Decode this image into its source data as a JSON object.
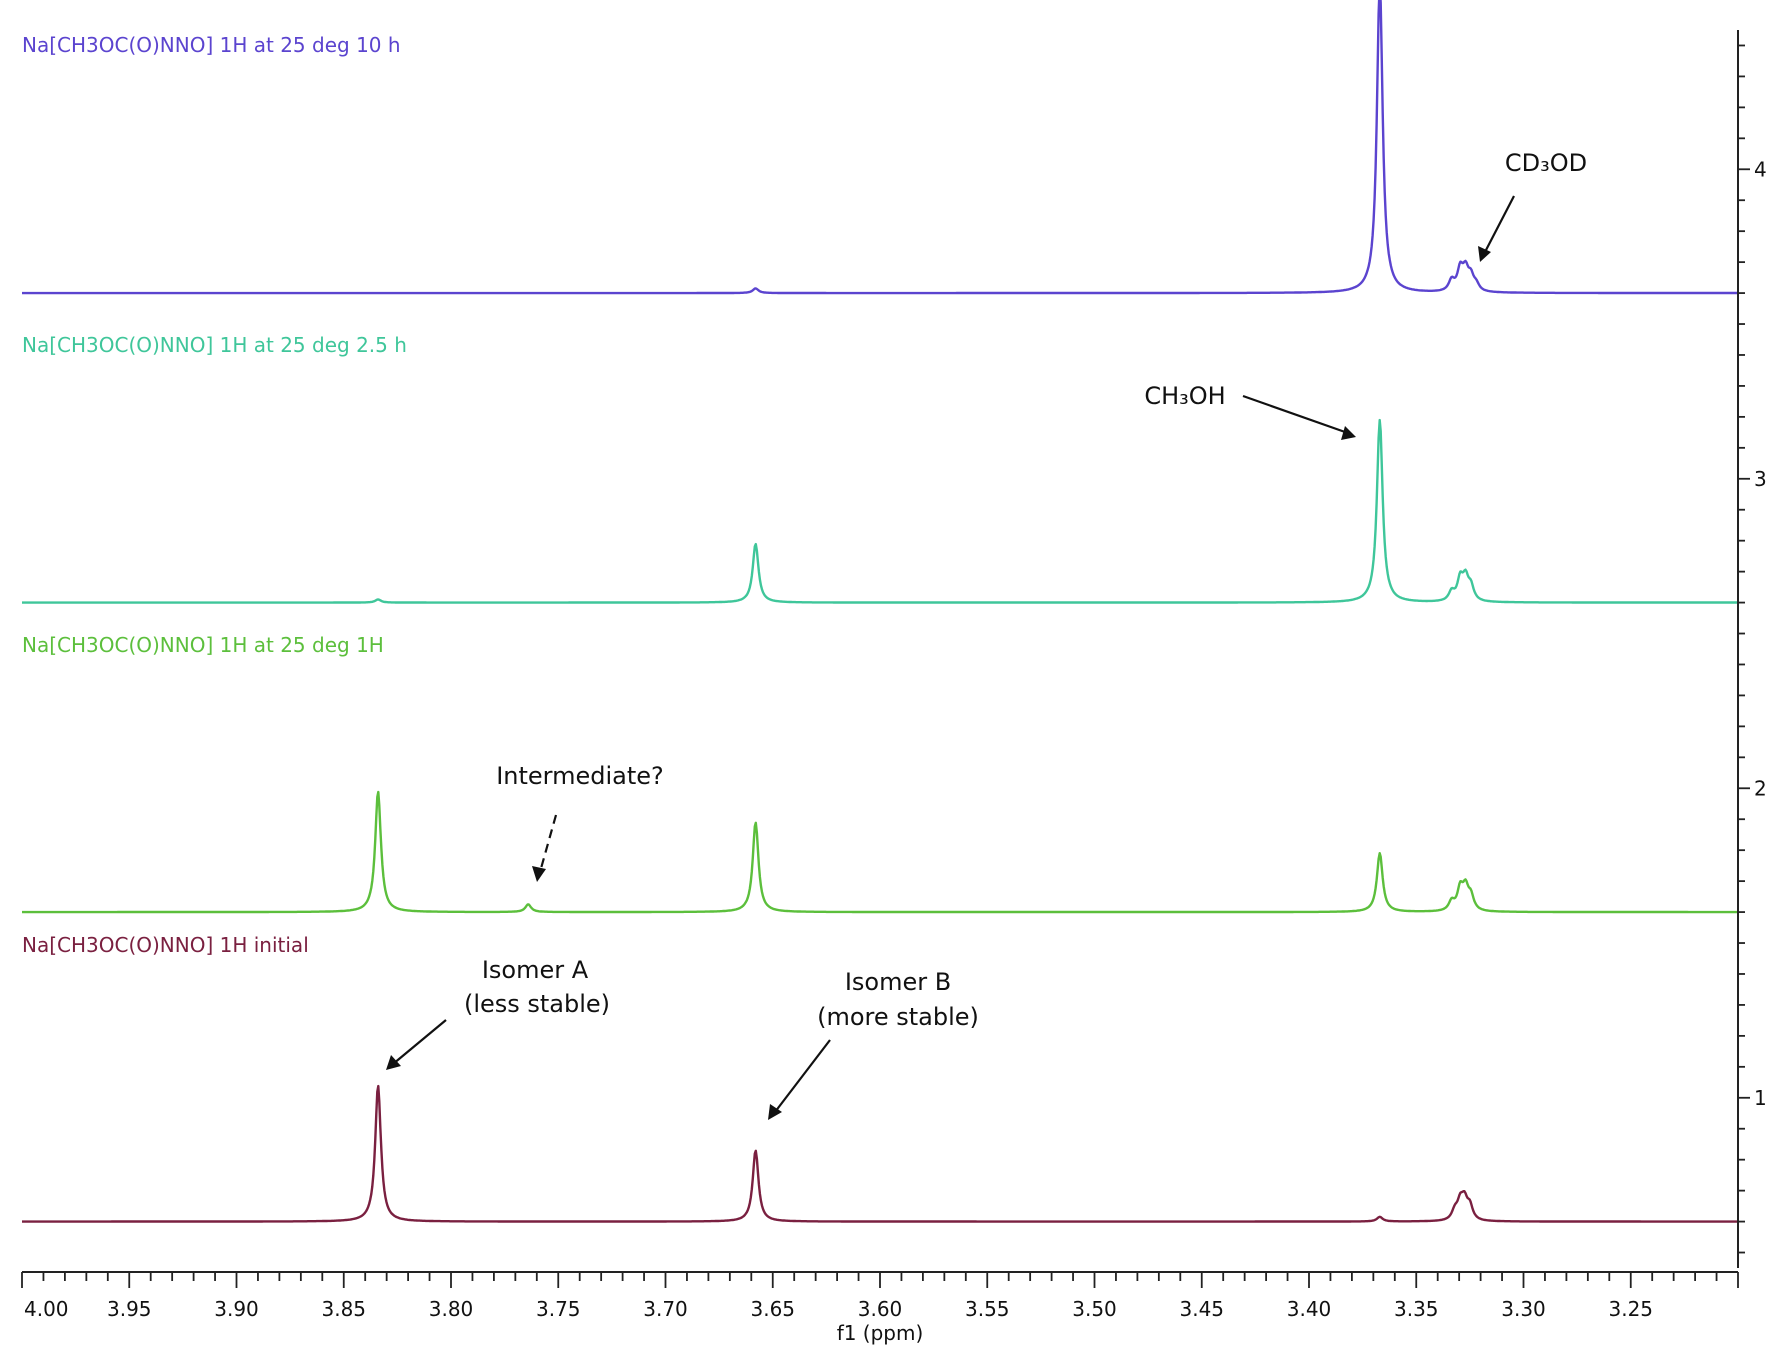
{
  "chart_data": {
    "type": "line",
    "title": "",
    "xlabel": "f1 (ppm)",
    "ylabel": "",
    "xlim": [
      4.0,
      3.2
    ],
    "x_reversed": true,
    "ylim": [
      0.45,
      4.45
    ],
    "x_ticks": [
      "4.00",
      "3.95",
      "3.90",
      "3.85",
      "3.80",
      "3.75",
      "3.70",
      "3.65",
      "3.60",
      "3.55",
      "3.50",
      "3.45",
      "3.40",
      "3.35",
      "3.30",
      "3.25"
    ],
    "y_ticks": [
      "1",
      "2",
      "3",
      "4"
    ],
    "grid": false,
    "series": [
      {
        "name": "Na[CH3OC(O)NNO] 1H initial",
        "color": "#7a2040",
        "baseline": 0.6,
        "peaks": [
          {
            "x": 3.834,
            "height": 0.44
          },
          {
            "x": 3.658,
            "height": 0.23
          },
          {
            "x": 3.367,
            "height": 0.015
          },
          {
            "x": 3.3295,
            "height": 0.055
          },
          {
            "x": 3.3275,
            "height": 0.06
          },
          {
            "x": 3.325,
            "height": 0.045
          },
          {
            "x": 3.332,
            "height": 0.03
          }
        ]
      },
      {
        "name": "Na[CH3OC(O)NNO] 1H at 25 deg 1H",
        "color": "#5cbf3c",
        "baseline": 1.6,
        "peaks": [
          {
            "x": 3.834,
            "height": 0.39
          },
          {
            "x": 3.764,
            "height": 0.025
          },
          {
            "x": 3.658,
            "height": 0.29
          },
          {
            "x": 3.367,
            "height": 0.19
          },
          {
            "x": 3.3335,
            "height": 0.03
          },
          {
            "x": 3.3295,
            "height": 0.07
          },
          {
            "x": 3.327,
            "height": 0.07
          },
          {
            "x": 3.3245,
            "height": 0.045
          }
        ]
      },
      {
        "name": "Na[CH3OC(O)NNO] 1H at 25 deg 2.5 h",
        "color": "#3fc69a",
        "baseline": 2.6,
        "peaks": [
          {
            "x": 3.834,
            "height": 0.01
          },
          {
            "x": 3.658,
            "height": 0.19
          },
          {
            "x": 3.367,
            "height": 0.59
          },
          {
            "x": 3.3335,
            "height": 0.03
          },
          {
            "x": 3.3295,
            "height": 0.07
          },
          {
            "x": 3.327,
            "height": 0.07
          },
          {
            "x": 3.3245,
            "height": 0.045
          }
        ]
      },
      {
        "name": "Na[CH3OC(O)NNO] 1H at 25 deg 10 h",
        "color": "#5b44cf",
        "baseline": 3.6,
        "peaks": [
          {
            "x": 3.658,
            "height": 0.015
          },
          {
            "x": 3.367,
            "height": 1.0
          },
          {
            "x": 3.3335,
            "height": 0.035
          },
          {
            "x": 3.3295,
            "height": 0.07
          },
          {
            "x": 3.327,
            "height": 0.065
          },
          {
            "x": 3.3245,
            "height": 0.045
          },
          {
            "x": 3.322,
            "height": 0.02
          }
        ]
      }
    ],
    "annotations": [
      {
        "text": "Isomer A",
        "x": 3.834,
        "series": 0
      },
      {
        "text": "(less stable)",
        "x": 3.834,
        "series": 0
      },
      {
        "text": "Isomer B",
        "x": 3.658,
        "series": 0
      },
      {
        "text": "(more stable)",
        "x": 3.658,
        "series": 0
      },
      {
        "text": "Intermediate?",
        "x": 3.764,
        "series": 1
      },
      {
        "text": "CH₃OH",
        "x": 3.367,
        "series": 2
      },
      {
        "text": "CD₃OD",
        "x": 3.327,
        "series": 3
      }
    ]
  }
}
